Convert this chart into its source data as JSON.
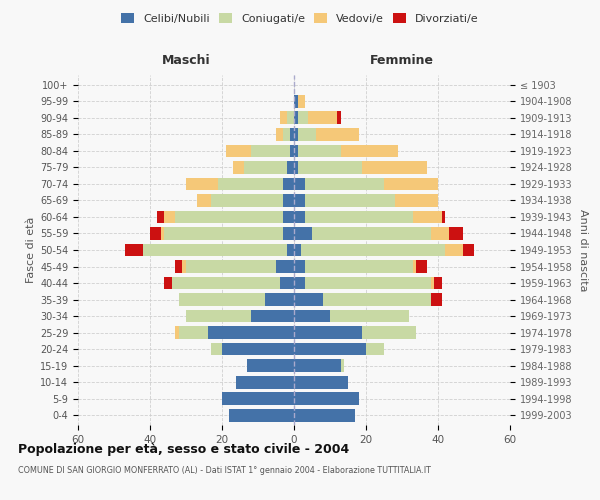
{
  "age_groups": [
    "0-4",
    "5-9",
    "10-14",
    "15-19",
    "20-24",
    "25-29",
    "30-34",
    "35-39",
    "40-44",
    "45-49",
    "50-54",
    "55-59",
    "60-64",
    "65-69",
    "70-74",
    "75-79",
    "80-84",
    "85-89",
    "90-94",
    "95-99",
    "100+"
  ],
  "birth_years": [
    "1999-2003",
    "1994-1998",
    "1989-1993",
    "1984-1988",
    "1979-1983",
    "1974-1978",
    "1969-1973",
    "1964-1968",
    "1959-1963",
    "1954-1958",
    "1949-1953",
    "1944-1948",
    "1939-1943",
    "1934-1938",
    "1929-1933",
    "1924-1928",
    "1919-1923",
    "1914-1918",
    "1909-1913",
    "1904-1908",
    "≤ 1903"
  ],
  "colors": {
    "celibi": "#4472a8",
    "coniugati": "#c8d9a4",
    "vedovi": "#f5c878",
    "divorziati": "#cc1111"
  },
  "males": {
    "celibi": [
      18,
      20,
      16,
      13,
      20,
      24,
      12,
      8,
      4,
      5,
      2,
      3,
      3,
      3,
      3,
      2,
      1,
      1,
      0,
      0,
      0
    ],
    "coniugati": [
      0,
      0,
      0,
      0,
      3,
      8,
      18,
      24,
      30,
      25,
      40,
      33,
      30,
      20,
      18,
      12,
      11,
      2,
      2,
      0,
      0
    ],
    "vedovi": [
      0,
      0,
      0,
      0,
      0,
      1,
      0,
      0,
      0,
      1,
      0,
      1,
      3,
      4,
      9,
      3,
      7,
      2,
      2,
      0,
      0
    ],
    "divorziati": [
      0,
      0,
      0,
      0,
      0,
      0,
      0,
      0,
      2,
      2,
      5,
      3,
      2,
      0,
      0,
      0,
      0,
      0,
      0,
      0,
      0
    ]
  },
  "females": {
    "celibi": [
      17,
      18,
      15,
      13,
      20,
      19,
      10,
      8,
      3,
      3,
      2,
      5,
      3,
      3,
      3,
      1,
      1,
      1,
      1,
      1,
      0
    ],
    "coniugati": [
      0,
      0,
      0,
      1,
      5,
      15,
      22,
      30,
      35,
      30,
      40,
      33,
      30,
      25,
      22,
      18,
      12,
      5,
      3,
      0,
      0
    ],
    "vedovi": [
      0,
      0,
      0,
      0,
      0,
      0,
      0,
      0,
      1,
      1,
      5,
      5,
      8,
      12,
      15,
      18,
      16,
      12,
      8,
      2,
      0
    ],
    "divorziati": [
      0,
      0,
      0,
      0,
      0,
      0,
      0,
      3,
      2,
      3,
      3,
      4,
      1,
      0,
      0,
      0,
      0,
      0,
      1,
      0,
      0
    ]
  },
  "title": "Popolazione per età, sesso e stato civile - 2004",
  "subtitle": "COMUNE DI SAN GIORGIO MONFERRATO (AL) - Dati ISTAT 1° gennaio 2004 - Elaborazione TUTTITALIA.IT",
  "xlabel_maschi": "Maschi",
  "xlabel_femmine": "Femmine",
  "ylabel_left": "Fasce di età",
  "ylabel_right": "Anni di nascita",
  "legend_labels": [
    "Celibi/Nubili",
    "Coniugati/e",
    "Vedovi/e",
    "Divorziati/e"
  ],
  "xlim": 60,
  "xticks": [
    60,
    40,
    20,
    0,
    20,
    40,
    60
  ],
  "background_color": "#f8f8f8",
  "grid_color": "#cccccc"
}
